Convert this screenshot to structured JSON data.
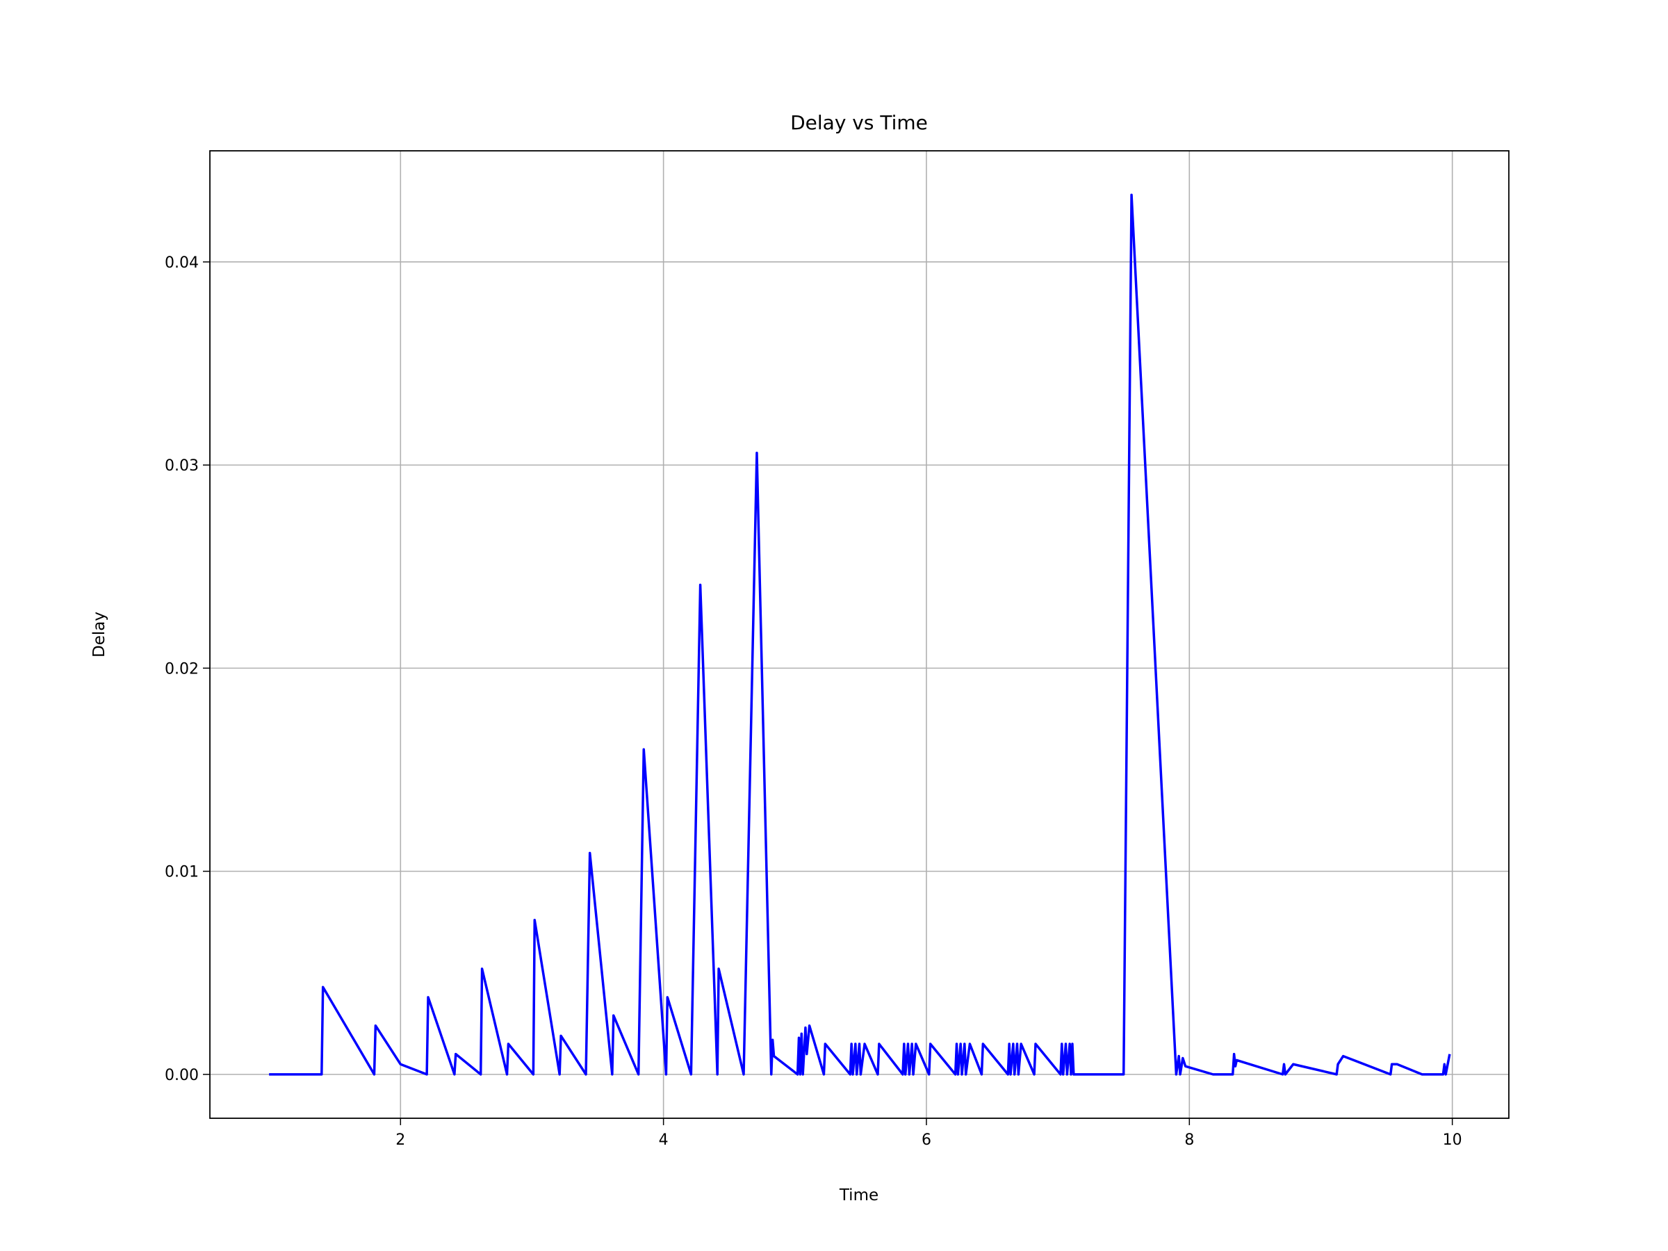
{
  "chart_data": {
    "type": "line",
    "title": "Delay vs Time",
    "x_label": "Time",
    "y_label": "Delay",
    "xlim": [
      0.55,
      10.43
    ],
    "ylim": [
      -0.00216,
      0.04547
    ],
    "xticks": [
      2,
      4,
      6,
      8,
      10
    ],
    "yticks": [
      {
        "value": 0,
        "label": "0.00"
      },
      0.01,
      0.02,
      0.03,
      0.04
    ],
    "grid": true,
    "series": [
      {
        "name": "Delay",
        "color": "#0000ff",
        "x": [
          1.0,
          1.4,
          1.41,
          1.8,
          1.81,
          2.0,
          2.2,
          2.21,
          2.41,
          2.42,
          2.61,
          2.62,
          2.81,
          2.82,
          3.01,
          3.02,
          3.21,
          3.22,
          3.41,
          3.44,
          3.61,
          3.62,
          3.81,
          3.85,
          4.02,
          4.03,
          4.21,
          4.28,
          4.41,
          4.42,
          4.61,
          4.71,
          4.82,
          4.83,
          4.84,
          5.02,
          5.03,
          5.04,
          5.05,
          5.06,
          5.08,
          5.09,
          5.11,
          5.22,
          5.23,
          5.42,
          5.43,
          5.44,
          5.46,
          5.47,
          5.49,
          5.5,
          5.53,
          5.63,
          5.64,
          5.82,
          5.83,
          5.84,
          5.86,
          5.87,
          5.89,
          5.9,
          5.92,
          6.02,
          6.03,
          6.22,
          6.23,
          6.24,
          6.26,
          6.27,
          6.29,
          6.3,
          6.33,
          6.42,
          6.43,
          6.62,
          6.63,
          6.64,
          6.66,
          6.67,
          6.69,
          6.7,
          6.72,
          6.82,
          6.83,
          7.02,
          7.03,
          7.04,
          7.06,
          7.07,
          7.09,
          7.1,
          7.11,
          7.12,
          7.5,
          7.56,
          7.9,
          7.92,
          7.93,
          7.95,
          7.97,
          8.18,
          8.33,
          8.34,
          8.35,
          8.36,
          8.71,
          8.72,
          8.73,
          8.79,
          9.12,
          9.13,
          9.17,
          9.53,
          9.54,
          9.58,
          9.77,
          9.93,
          9.94,
          9.95,
          9.98
        ],
        "values": [
          0,
          0,
          0.0043,
          0,
          0.0024,
          0.0005,
          0,
          0.0038,
          0,
          0.001,
          0,
          0.0052,
          0,
          0.0015,
          0,
          0.0076,
          0,
          0.0019,
          0,
          0.0109,
          0,
          0.0029,
          0,
          0.016,
          0,
          0.0038,
          0,
          0.0241,
          0,
          0.0052,
          0,
          0.0306,
          0,
          0.0017,
          0.0009,
          0,
          0.0018,
          0,
          0.002,
          0,
          0.0023,
          0.001,
          0.0024,
          0,
          0.0015,
          0,
          0.0015,
          0,
          0.0015,
          0,
          0.0015,
          0,
          0.0015,
          0,
          0.0015,
          0,
          0.0015,
          0,
          0.0015,
          0,
          0.0015,
          0,
          0.0015,
          0,
          0.0015,
          0,
          0.0015,
          0,
          0.0015,
          0,
          0.0015,
          0,
          0.0015,
          0,
          0.0015,
          0,
          0.0015,
          0,
          0.0015,
          0,
          0.0015,
          0,
          0.0015,
          0,
          0.0015,
          0,
          0.0015,
          0,
          0.0015,
          0,
          0.0015,
          0,
          0.0015,
          0,
          0,
          0.0433,
          0,
          0.0009,
          0,
          0.0008,
          0.0004,
          0,
          0,
          0.001,
          0.0004,
          0.0007,
          0,
          0.0005,
          0,
          0.0005,
          0,
          0.0005,
          0.0009,
          0,
          0.0005,
          0.0005,
          0,
          0,
          0.0005,
          0,
          0.001
        ]
      }
    ]
  }
}
